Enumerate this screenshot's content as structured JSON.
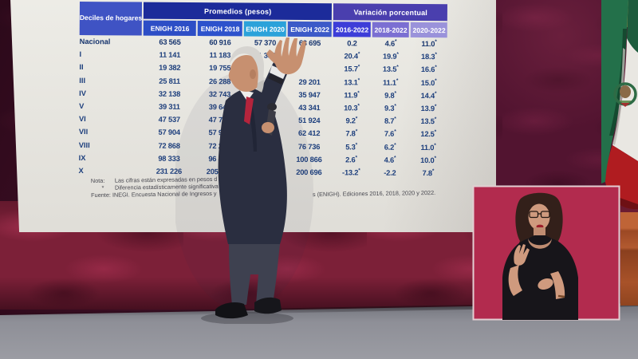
{
  "scene_title": "Press conference with projected ENIGH income table, sign-language interpreter and Mexican flag",
  "table": {
    "corner_header": "Deciles de\nhogares",
    "group_headers": [
      "Promedios (pesos)",
      "Variación porcentual"
    ],
    "col_headers": [
      "ENIGH 2016",
      "ENIGH 2018",
      "ENIGH 2020",
      "ENIGH 2022",
      "2016-2022",
      "2018-2022",
      "2020-2022"
    ],
    "rows": [
      {
        "label": "Nacional",
        "bold": true,
        "values": [
          "63 565",
          "60 916",
          "57 370",
          "63 695",
          "0.2",
          "4.6*",
          "11.0*"
        ]
      },
      {
        "label": "I",
        "bold": false,
        "values": [
          "11 141",
          "11 183",
          "11 333",
          "",
          "20.4*",
          "19.9*",
          "18.3*"
        ]
      },
      {
        "label": "II",
        "bold": false,
        "values": [
          "19 382",
          "19 755",
          "",
          "",
          "15.7*",
          "13.5*",
          "16.6*"
        ]
      },
      {
        "label": "III",
        "bold": false,
        "values": [
          "25 811",
          "26 288",
          "",
          "29 201",
          "13.1*",
          "11.1*",
          "15.0*"
        ]
      },
      {
        "label": "IV",
        "bold": false,
        "values": [
          "32 138",
          "32 743",
          "",
          "35 947",
          "11.9*",
          "9.8*",
          "14.4*"
        ]
      },
      {
        "label": "V",
        "bold": false,
        "values": [
          "39 311",
          "39 640",
          "",
          "43 341",
          "10.3*",
          "9.3*",
          "13.9*"
        ]
      },
      {
        "label": "VI",
        "bold": false,
        "values": [
          "47 537",
          "47 777",
          "",
          "51 924",
          "9.2*",
          "8.7*",
          "13.5*"
        ]
      },
      {
        "label": "VII",
        "bold": false,
        "values": [
          "57 904",
          "57 979",
          "",
          "62 412",
          "7.8*",
          "7.6*",
          "12.5*"
        ]
      },
      {
        "label": "VIII",
        "bold": false,
        "values": [
          "72 868",
          "72 239",
          "",
          "76 736",
          "5.3*",
          "6.2*",
          "11.0*"
        ]
      },
      {
        "label": "IX",
        "bold": false,
        "values": [
          "98 333",
          "96 445",
          "",
          "100 866",
          "2.6*",
          "4.6*",
          "10.0*"
        ]
      },
      {
        "label": "X",
        "bold": false,
        "values": [
          "231 226",
          "205 106",
          "",
          "200 696",
          "-13.2*",
          "-2.2",
          "7.8*"
        ]
      }
    ],
    "notes": {
      "nota_label": "Nota:",
      "nota_text": "Las cifras están expresadas en pesos d",
      "asterisk_label": "*",
      "asterisk_text": "Diferencia estadísticamente significativa",
      "fuente_text": "Fuente: INEGI. Encuesta Nacional de Ingresos y",
      "fuente_text_right": "s (ENIGH). Ediciones 2016, 2018, 2020 y 2022."
    }
  },
  "chart_data": {
    "type": "table",
    "columns": [
      "Deciles de hogares",
      "ENIGH 2016",
      "ENIGH 2018",
      "ENIGH 2020",
      "ENIGH 2022",
      "2016-2022",
      "2018-2022",
      "2020-2022"
    ],
    "rows": [
      [
        "Nacional",
        "63 565",
        "60 916",
        "57 370",
        "63 695",
        "0.2",
        "4.6*",
        "11.0*"
      ],
      [
        "I",
        "11 141",
        "11 183",
        "11 333",
        null,
        "20.4*",
        "19.9*",
        "18.3*"
      ],
      [
        "II",
        "19 382",
        "19 755",
        null,
        null,
        "15.7*",
        "13.5*",
        "16.6*"
      ],
      [
        "III",
        "25 811",
        "26 288",
        null,
        "29 201",
        "13.1*",
        "11.1*",
        "15.0*"
      ],
      [
        "IV",
        "32 138",
        "32 743",
        null,
        "35 947",
        "11.9*",
        "9.8*",
        "14.4*"
      ],
      [
        "V",
        "39 311",
        "39 640",
        null,
        "43 341",
        "10.3*",
        "9.3*",
        "13.9*"
      ],
      [
        "VI",
        "47 537",
        "47 777",
        null,
        "51 924",
        "9.2*",
        "8.7*",
        "13.5*"
      ],
      [
        "VII",
        "57 904",
        "57 979",
        null,
        "62 412",
        "7.8*",
        "7.6*",
        "12.5*"
      ],
      [
        "VIII",
        "72 868",
        "72 239",
        null,
        "76 736",
        "5.3*",
        "6.2*",
        "11.0*"
      ],
      [
        "IX",
        "98 333",
        "96 445",
        null,
        "100 866",
        "2.6*",
        "4.6*",
        "10.0*"
      ],
      [
        "X",
        "231 226",
        "205 106",
        null,
        "200 696",
        "-13.2*",
        "-2.2",
        "7.8*"
      ]
    ],
    "note": "null = cell hidden behind the speaker in the photo"
  },
  "colors": {
    "backdrop_dark": "#521430",
    "backdrop_lit": "#8f2742",
    "floor": "#90919a",
    "screen_bg": "#ecebe5",
    "table_text": "#1c3e7c",
    "header_text": "#ffffff",
    "corner_bg": "#3f53c4",
    "promedios_bg": "#1c2b9a",
    "variacion_bg": "#4a3fae",
    "col_header_bgs": [
      "#2d4ec6",
      "#2d52cc",
      "#2ba2da",
      "#3c5ac8",
      "#3d3dd8",
      "#7b6fd2",
      "#9a92da"
    ],
    "interpreter_box_bg": "#b22b4e",
    "interpreter_box_border": "#e3ced2",
    "flag_green": "#23704a",
    "flag_white": "#e9e7e2",
    "flag_red": "#b01c20",
    "suit": "#2a2e40",
    "tie": "#b5243c"
  }
}
